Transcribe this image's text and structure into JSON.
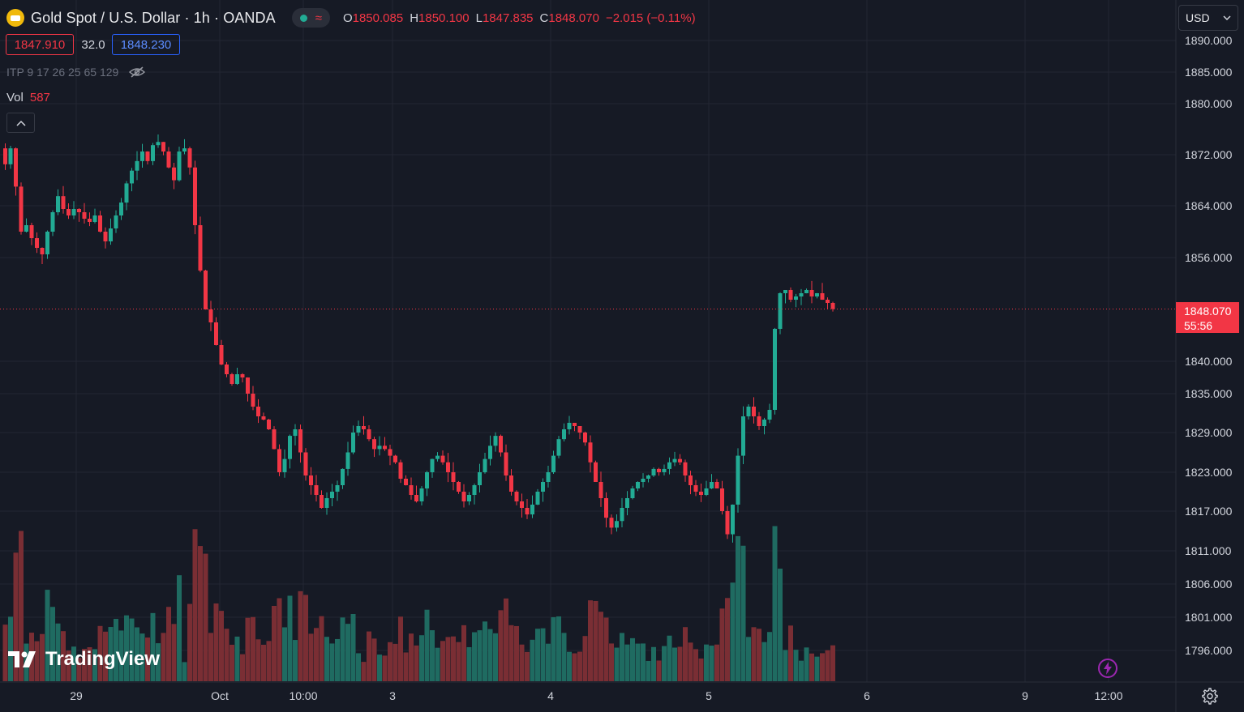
{
  "header": {
    "symbol_title": "Gold Spot / U.S. Dollar · 1h · OANDA",
    "wave_icon": "≈",
    "ohlc": {
      "o_label": "O",
      "o": "1850.085",
      "h_label": "H",
      "h": "1850.100",
      "l_label": "L",
      "l": "1847.835",
      "c_label": "C",
      "c": "1848.070",
      "change": "−2.015 (−0.11%)"
    }
  },
  "quote": {
    "bid": "1847.910",
    "spread": "32.0",
    "ask": "1848.230"
  },
  "indicator": {
    "label": "ITP 9 17 26 25 65 129"
  },
  "volume": {
    "label": "Vol",
    "value": "587"
  },
  "currency": {
    "label": "USD"
  },
  "last_price": {
    "price": "1848.070",
    "countdown": "55:56"
  },
  "logo": {
    "text": "TradingView"
  },
  "colors": {
    "up": "#22ab94",
    "down": "#f23645",
    "background": "#161a25",
    "grid": "#232632"
  },
  "chart_data": {
    "type": "candlestick",
    "y_axis_ticks": [
      "1890.000",
      "1885.000",
      "1880.000",
      "1872.000",
      "1864.000",
      "1856.000",
      "1840.000",
      "1835.000",
      "1829.000",
      "1823.000",
      "1817.000",
      "1811.000",
      "1806.000",
      "1801.000",
      "1796.000"
    ],
    "y_axis_values": [
      1890,
      1885,
      1880,
      1872,
      1864,
      1856,
      1840,
      1835,
      1829,
      1823,
      1817,
      1811,
      1806,
      1801,
      1796
    ],
    "x_axis_labels": [
      "29",
      "Oct",
      "10:00",
      "3",
      "4",
      "5",
      "6",
      "9",
      "12:00"
    ],
    "last_price": 1848.07,
    "closes": [
      1870.5,
      1873.0,
      1867.0,
      1860.0,
      1861.0,
      1859.0,
      1857.5,
      1856.5,
      1860.0,
      1863.0,
      1865.5,
      1863.5,
      1862.5,
      1863.5,
      1863.0,
      1862.0,
      1861.5,
      1862.5,
      1860.0,
      1858.5,
      1860.5,
      1862.5,
      1864.5,
      1867.5,
      1869.5,
      1871.0,
      1872.5,
      1871.0,
      1873.5,
      1874.0,
      1872.5,
      1870.0,
      1868.0,
      1872.5,
      1873.0,
      1870.0,
      1861.0,
      1854.0,
      1848.0,
      1846.0,
      1842.5,
      1839.5,
      1838.0,
      1836.5,
      1838.0,
      1837.5,
      1835.0,
      1833.0,
      1831.5,
      1831.0,
      1829.5,
      1826.5,
      1823.0,
      1825.0,
      1828.5,
      1829.5,
      1826.0,
      1822.5,
      1821.0,
      1819.5,
      1817.5,
      1819.0,
      1820.0,
      1821.0,
      1823.5,
      1826.0,
      1829.0,
      1830.0,
      1829.5,
      1828.0,
      1826.5,
      1827.0,
      1826.5,
      1825.5,
      1824.5,
      1822.0,
      1821.0,
      1819.5,
      1818.5,
      1820.5,
      1823.0,
      1825.0,
      1825.5,
      1824.5,
      1823.0,
      1821.5,
      1820.0,
      1818.5,
      1819.5,
      1821.0,
      1823.0,
      1825.0,
      1827.0,
      1828.5,
      1826.0,
      1822.5,
      1820.0,
      1818.5,
      1817.5,
      1816.5,
      1818.0,
      1820.0,
      1821.5,
      1823.0,
      1825.5,
      1828.0,
      1829.5,
      1830.5,
      1830.0,
      1829.0,
      1827.5,
      1824.5,
      1821.5,
      1819.0,
      1816.0,
      1814.5,
      1815.5,
      1817.5,
      1819.0,
      1820.5,
      1821.5,
      1822.0,
      1822.5,
      1823.5,
      1823.0,
      1823.5,
      1824.5,
      1825.0,
      1824.5,
      1822.5,
      1821.0,
      1820.0,
      1819.5,
      1820.5,
      1821.5,
      1820.5,
      1817.0,
      1813.5,
      1818.0,
      1825.5,
      1831.5,
      1833.0,
      1831.5,
      1830.0,
      1831.0,
      1832.5,
      1845.0,
      1850.5,
      1851.0,
      1849.5,
      1850.0,
      1850.5,
      1851.0,
      1850.0,
      1850.5,
      1849.5,
      1849.0,
      1848.07
    ]
  }
}
